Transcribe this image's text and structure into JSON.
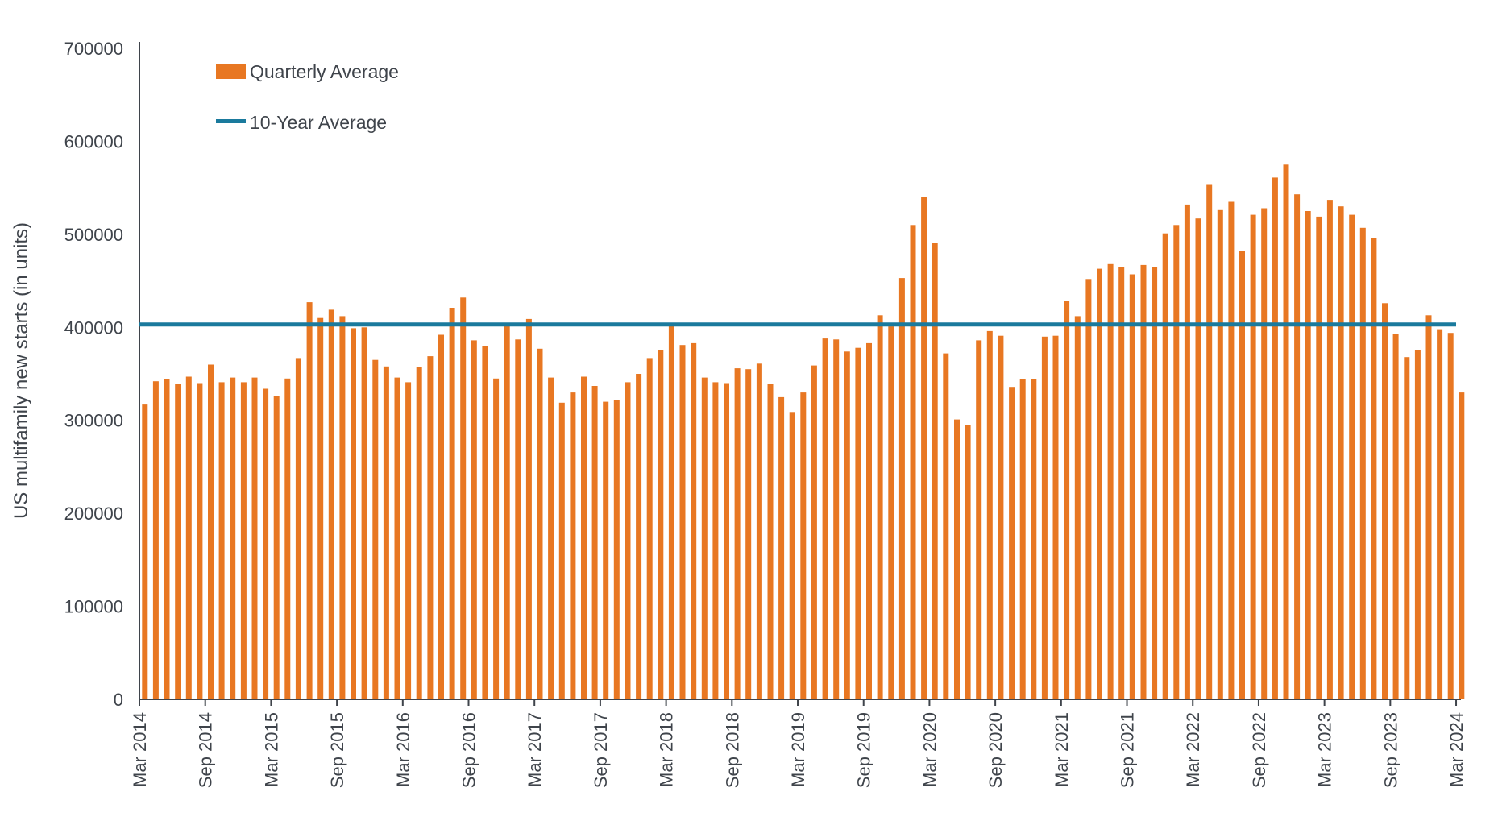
{
  "page": {
    "background": "#FFFFFF"
  },
  "chart_data": {
    "type": "bar",
    "title": "",
    "xlabel": "",
    "ylabel": "US multifamily new starts (in units)",
    "legend": [
      "Quarterly Average",
      "10-Year Average"
    ],
    "legend_position": "top-left-inside",
    "grid": false,
    "ylim": [
      0,
      700000
    ],
    "y_tick_step": 100000,
    "y_tick_labels": [
      "0",
      "100000",
      "200000",
      "300000",
      "400000",
      "500000",
      "600000",
      "700000"
    ],
    "x_tick_interval": 6,
    "x_tick_labels": [
      "Mar 2014",
      "Sep 2014",
      "Mar 2015",
      "Sep 2015",
      "Mar 2016",
      "Sep 2016",
      "Mar 2017",
      "Sep 2017",
      "Mar 2018",
      "Sep 2018",
      "Mar 2019",
      "Sep 2019",
      "Mar 2020",
      "Sep 2020",
      "Mar 2021",
      "Sep 2021",
      "Mar 2022",
      "Sep 2022",
      "Mar 2023",
      "Sep 2023",
      "Mar 2024"
    ],
    "bar_color": "#E87722",
    "line_color": "#1A7A9D",
    "axis_color": "#3F444B",
    "ten_year_average": 403000,
    "x": [
      "Mar 2014",
      "Apr 2014",
      "May 2014",
      "Jun 2014",
      "Jul 2014",
      "Aug 2014",
      "Sep 2014",
      "Oct 2014",
      "Nov 2014",
      "Dec 2014",
      "Jan 2015",
      "Feb 2015",
      "Mar 2015",
      "Apr 2015",
      "May 2015",
      "Jun 2015",
      "Jul 2015",
      "Aug 2015",
      "Sep 2015",
      "Oct 2015",
      "Nov 2015",
      "Dec 2015",
      "Jan 2016",
      "Feb 2016",
      "Mar 2016",
      "Apr 2016",
      "May 2016",
      "Jun 2016",
      "Jul 2016",
      "Aug 2016",
      "Sep 2016",
      "Oct 2016",
      "Nov 2016",
      "Dec 2016",
      "Jan 2017",
      "Feb 2017",
      "Mar 2017",
      "Apr 2017",
      "May 2017",
      "Jun 2017",
      "Jul 2017",
      "Aug 2017",
      "Sep 2017",
      "Oct 2017",
      "Nov 2017",
      "Dec 2017",
      "Jan 2018",
      "Feb 2018",
      "Mar 2018",
      "Apr 2018",
      "May 2018",
      "Jun 2018",
      "Jul 2018",
      "Aug 2018",
      "Sep 2018",
      "Oct 2018",
      "Nov 2018",
      "Dec 2018",
      "Jan 2019",
      "Feb 2019",
      "Mar 2019",
      "Apr 2019",
      "May 2019",
      "Jun 2019",
      "Jul 2019",
      "Aug 2019",
      "Sep 2019",
      "Oct 2019",
      "Nov 2019",
      "Dec 2019",
      "Jan 2020",
      "Feb 2020",
      "Mar 2020",
      "Apr 2020",
      "May 2020",
      "Jun 2020",
      "Jul 2020",
      "Aug 2020",
      "Sep 2020",
      "Oct 2020",
      "Nov 2020",
      "Dec 2020",
      "Jan 2021",
      "Feb 2021",
      "Mar 2021",
      "Apr 2021",
      "May 2021",
      "Jun 2021",
      "Jul 2021",
      "Aug 2021",
      "Sep 2021",
      "Oct 2021",
      "Nov 2021",
      "Dec 2021",
      "Jan 2022",
      "Feb 2022",
      "Mar 2022",
      "Apr 2022",
      "May 2022",
      "Jun 2022",
      "Jul 2022",
      "Aug 2022",
      "Sep 2022",
      "Oct 2022",
      "Nov 2022",
      "Dec 2022",
      "Jan 2023",
      "Feb 2023",
      "Mar 2023",
      "Apr 2023",
      "May 2023",
      "Jun 2023",
      "Jul 2023",
      "Aug 2023",
      "Sep 2023",
      "Oct 2023",
      "Nov 2023",
      "Dec 2023",
      "Jan 2024",
      "Feb 2024",
      "Mar 2024"
    ],
    "values": [
      317000,
      342000,
      344000,
      339000,
      347000,
      340000,
      360000,
      341000,
      346000,
      341000,
      346000,
      334000,
      326000,
      345000,
      367000,
      427000,
      410000,
      419000,
      412000,
      399000,
      400000,
      365000,
      358000,
      346000,
      341000,
      357000,
      369000,
      392000,
      421000,
      432000,
      386000,
      380000,
      345000,
      402000,
      387000,
      409000,
      377000,
      346000,
      319000,
      330000,
      347000,
      337000,
      320000,
      322000,
      341000,
      350000,
      367000,
      376000,
      405000,
      381000,
      383000,
      346000,
      341000,
      340000,
      356000,
      355000,
      361000,
      339000,
      325000,
      309000,
      330000,
      359000,
      388000,
      387000,
      374000,
      378000,
      383000,
      413000,
      401000,
      453000,
      510000,
      540000,
      491000,
      372000,
      301000,
      295000,
      386000,
      396000,
      391000,
      336000,
      344000,
      344000,
      390000,
      391000,
      428000,
      412000,
      452000,
      463000,
      468000,
      465000,
      457000,
      467000,
      465000,
      501000,
      510000,
      532000,
      517000,
      554000,
      526000,
      535000,
      482000,
      521000,
      528000,
      561000,
      575000,
      543000,
      525000,
      519000,
      537000,
      530000,
      521000,
      507000,
      496000,
      426000,
      393000,
      368000,
      376000,
      413000,
      398000,
      394000,
      330000
    ]
  }
}
